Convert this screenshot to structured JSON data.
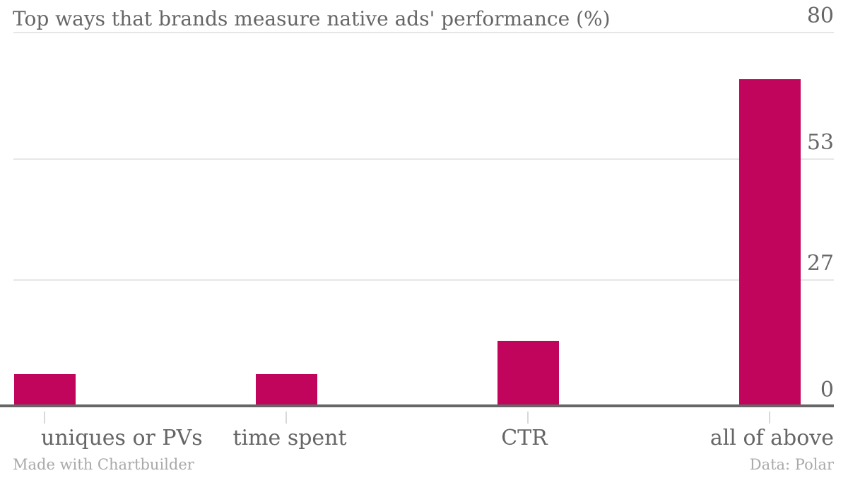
{
  "title": "Top ways that brands measure native ads' performance (%)",
  "footer": {
    "credit": "Made with Chartbuilder",
    "source": "Data: Polar"
  },
  "colors": {
    "bar": "#c1045c",
    "text": "#666666",
    "muted_text": "#a9a9a9",
    "gridline": "#e6e6e6",
    "tick": "#d8d8d8",
    "axis": "#666666",
    "background": "#ffffff"
  },
  "chart_data": {
    "type": "bar",
    "title": "Top ways that brands measure native ads' performance (%)",
    "categories": [
      "uniques or PVs",
      "time spent",
      "CTR",
      "all of above"
    ],
    "values": [
      7,
      7,
      14,
      70
    ],
    "series_color": "#c1045c",
    "xlabel": "",
    "ylabel": "",
    "ylim": [
      0,
      80
    ],
    "yticks": [
      0,
      27,
      53,
      80
    ],
    "ytick_side": "right",
    "grid": "horizontal",
    "legend": "none"
  }
}
